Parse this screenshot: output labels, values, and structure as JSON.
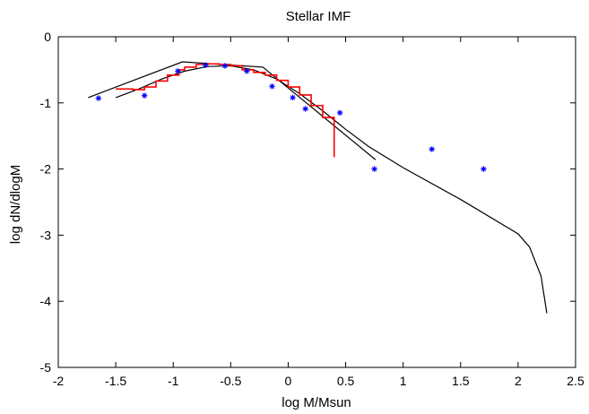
{
  "chart_data": {
    "type": "line",
    "title": "Stellar IMF",
    "xlabel": "log M/Msun",
    "ylabel": "log dN/dlogM",
    "xlim": [
      -2,
      2.5
    ],
    "ylim": [
      -5,
      0
    ],
    "grid": false,
    "x_ticks": [
      "-2",
      "-1.5",
      "-1",
      "-0.5",
      "0",
      "0.5",
      "1",
      "1.5",
      "2",
      "2.5"
    ],
    "y_ticks": [
      "0",
      "-1",
      "-2",
      "-3",
      "-4",
      "-5"
    ],
    "series": [
      {
        "kind": "line",
        "color": "#000000",
        "points": [
          [
            -1.74,
            -0.92
          ],
          [
            -0.92,
            -0.38
          ],
          [
            -0.22,
            -0.46
          ],
          [
            0.76,
            -1.86
          ]
        ]
      },
      {
        "kind": "line",
        "color": "#000000",
        "points": [
          [
            -1.5,
            -0.92
          ],
          [
            -1.3,
            -0.79
          ],
          [
            -1.1,
            -0.64
          ],
          [
            -0.9,
            -0.52
          ],
          [
            -0.7,
            -0.45
          ],
          [
            -0.5,
            -0.44
          ],
          [
            -0.3,
            -0.5
          ],
          [
            -0.1,
            -0.64
          ],
          [
            0.1,
            -0.86
          ],
          [
            0.3,
            -1.12
          ],
          [
            0.5,
            -1.4
          ],
          [
            0.7,
            -1.66
          ],
          [
            1.0,
            -1.98
          ],
          [
            1.5,
            -2.46
          ],
          [
            2.0,
            -2.98
          ],
          [
            2.1,
            -3.18
          ],
          [
            2.2,
            -3.62
          ],
          [
            2.25,
            -4.18
          ]
        ]
      },
      {
        "kind": "step",
        "color": "#ff0000",
        "points": [
          [
            -1.5,
            -0.79
          ],
          [
            -1.35,
            -0.8
          ],
          [
            -1.25,
            -0.76
          ],
          [
            -1.15,
            -0.67
          ],
          [
            -1.05,
            -0.58
          ],
          [
            -0.95,
            -0.5
          ],
          [
            -0.9,
            -0.46
          ],
          [
            -0.8,
            -0.42
          ],
          [
            -0.7,
            -0.41
          ],
          [
            -0.6,
            -0.42
          ],
          [
            -0.5,
            -0.44
          ],
          [
            -0.4,
            -0.5
          ],
          [
            -0.3,
            -0.54
          ],
          [
            -0.2,
            -0.58
          ],
          [
            -0.1,
            -0.66
          ],
          [
            0.0,
            -0.76
          ],
          [
            0.1,
            -0.88
          ],
          [
            0.2,
            -1.04
          ],
          [
            0.3,
            -1.22
          ],
          [
            0.4,
            -1.44
          ],
          [
            0.4,
            -1.82
          ]
        ]
      },
      {
        "kind": "scatter",
        "color": "#0000ff",
        "points": [
          [
            -1.65,
            -0.93
          ],
          [
            -1.25,
            -0.89
          ],
          [
            -0.96,
            -0.52
          ],
          [
            -0.72,
            -0.43
          ],
          [
            -0.55,
            -0.44
          ],
          [
            -0.36,
            -0.52
          ],
          [
            -0.14,
            -0.75
          ],
          [
            0.04,
            -0.92
          ],
          [
            0.15,
            -1.09
          ],
          [
            0.45,
            -1.15
          ],
          [
            0.75,
            -2.0
          ],
          [
            1.25,
            -1.7
          ],
          [
            1.7,
            -2.0
          ]
        ]
      }
    ]
  }
}
